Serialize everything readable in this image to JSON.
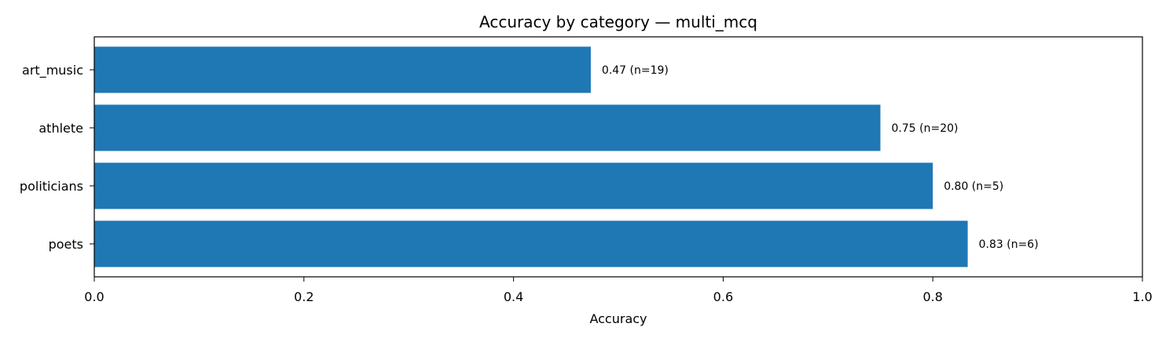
{
  "chart_data": {
    "type": "bar",
    "orientation": "horizontal",
    "title": "Accuracy by category — multi_mcq",
    "xlabel": "Accuracy",
    "ylabel": "",
    "xlim": [
      0,
      1
    ],
    "xticks": [
      0,
      0.2,
      0.4,
      0.6,
      0.8,
      1
    ],
    "xtick_labels": [
      "0.0",
      "0.2",
      "0.4",
      "0.6",
      "0.8",
      "1.0"
    ],
    "grid": false,
    "bar_color": "#1f77b4",
    "categories": [
      "art_music",
      "athlete",
      "politicians",
      "poets"
    ],
    "values": [
      0.4737,
      0.75,
      0.8,
      0.8333
    ],
    "n": [
      19,
      20,
      5,
      6
    ],
    "data_labels": [
      "0.47  (n=19)",
      "0.75  (n=20)",
      "0.80  (n=5)",
      "0.83  (n=6)"
    ]
  }
}
